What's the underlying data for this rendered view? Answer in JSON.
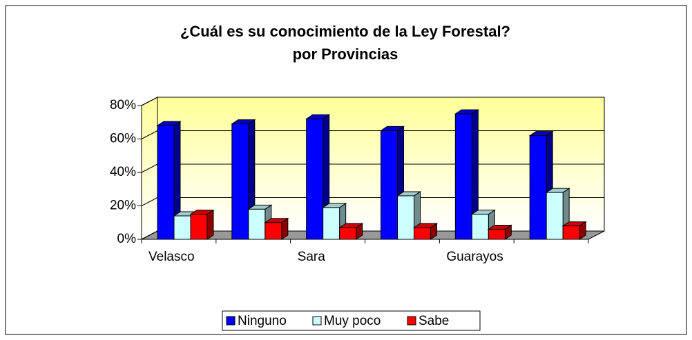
{
  "chart_data": {
    "type": "bar",
    "title": [
      "¿Cuál es su conocimiento de la Ley Forestal?",
      "por Provincias"
    ],
    "categories": [
      "Velasco",
      null,
      "Sara",
      null,
      "Guarayos",
      null
    ],
    "series": [
      {
        "name": "Ninguno",
        "color": "#0000ff",
        "values": [
          68,
          69,
          72,
          65,
          75,
          62
        ]
      },
      {
        "name": "Muy poco",
        "color": "#ccffff",
        "values": [
          14,
          18,
          19,
          26,
          15,
          28
        ]
      },
      {
        "name": "Sabe",
        "color": "#ff0000",
        "values": [
          15,
          10,
          7,
          7,
          6,
          8
        ]
      }
    ],
    "ylim": [
      0,
      80
    ],
    "yticks": [
      {
        "value": 0,
        "label": "0%"
      },
      {
        "value": 20,
        "label": "20%"
      },
      {
        "value": 40,
        "label": "40%"
      },
      {
        "value": 60,
        "label": "60%"
      },
      {
        "value": 80,
        "label": "80%"
      }
    ],
    "grid": true,
    "legend": "bottom"
  }
}
